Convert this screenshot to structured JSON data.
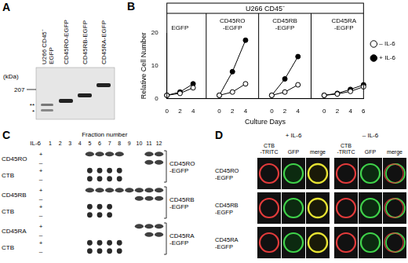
{
  "chart_data": {
    "panel_label": "B",
    "type": "line",
    "title": "U266 CD45⁻",
    "x_label": "Culture Days",
    "y_label": "Relative Cell Number",
    "categories": [
      "0",
      "2",
      "4",
      null,
      "0",
      "2",
      "4",
      null,
      "0",
      "2",
      "4",
      null,
      "0",
      "2",
      "4",
      "6"
    ],
    "groups": [
      [
        "EGFP"
      ],
      [
        "CD45RO",
        "-EGFP"
      ],
      [
        "CD45RB",
        "-EGFP"
      ],
      [
        "CD45RA",
        "-EGFP"
      ]
    ],
    "series": [
      {
        "name": "– IL-6",
        "color": "#000000",
        "marker": "open_circle",
        "values": [
          1,
          1.6,
          3.3,
          null,
          1,
          2,
          4.5,
          null,
          1,
          2,
          4.2,
          null,
          1,
          1.4,
          2.2,
          3.6
        ]
      },
      {
        "name": "+ IL-6",
        "color": "#000000",
        "marker": "circle",
        "values": [
          1,
          2,
          4.5,
          null,
          1,
          8.2,
          17.8,
          null,
          1,
          6,
          12.8,
          null,
          1,
          1.6,
          2.8,
          4.2
        ]
      }
    ],
    "ylim": [
      0,
      20
    ],
    "yticks": [
      0,
      10,
      20
    ],
    "grid": false,
    "legend": "right"
  },
  "panels": {
    "A": {
      "label": "A",
      "lanes": [
        [
          "U266 CD45⁻",
          "EGFP"
        ],
        [
          "CD45RO-EGFP"
        ],
        [
          "CD45RB-EGFP"
        ],
        [
          "CD45RA-EGFP"
        ]
      ],
      "unit": "(kDa)",
      "kda_marker": 207,
      "band_marks": [
        "**",
        "*"
      ]
    },
    "C": {
      "label": "C",
      "il6_label": "IL-6",
      "x_label": "Fraction number",
      "fractions": [
        1,
        2,
        3,
        4,
        5,
        6,
        7,
        8,
        9,
        10,
        11,
        12
      ],
      "signs": [
        "+",
        "–"
      ],
      "blocks": [
        {
          "construct": [
            "CD45RO",
            "-EGFP"
          ],
          "pairs": [
            {
              "probe": "CD45RO",
              "plus": [
                5,
                6,
                7,
                8,
                11,
                12
              ],
              "minus": [
                11,
                12
              ]
            },
            {
              "probe": "CTB",
              "plus": [
                5,
                6,
                7,
                8
              ],
              "minus": [
                5,
                6,
                7,
                8
              ]
            }
          ]
        },
        {
          "construct": [
            "CD45RB",
            "-EGFP"
          ],
          "pairs": [
            {
              "probe": "CD45RB",
              "plus": [
                5,
                6,
                7,
                8,
                9,
                10,
                11,
                12
              ],
              "minus": [
                10,
                11,
                12
              ]
            },
            {
              "probe": "CTB",
              "plus": [
                5,
                6,
                7
              ],
              "minus": [
                5,
                6,
                7
              ]
            }
          ]
        },
        {
          "construct": [
            "CD45RA",
            "-EGFP"
          ],
          "pairs": [
            {
              "probe": "CD45RA",
              "plus": [
                10,
                11,
                12
              ],
              "minus": [
                11,
                12
              ]
            },
            {
              "probe": "CTB",
              "plus": [
                5,
                6,
                7,
                8
              ],
              "minus": [
                5,
                6,
                7,
                8
              ]
            }
          ]
        }
      ]
    },
    "D": {
      "label": "D",
      "conditions": [
        "+ IL-6",
        "– IL-6"
      ],
      "channels": [
        [
          "CTB",
          "-TRITC"
        ],
        [
          "GFP"
        ],
        [
          "merge"
        ]
      ],
      "rows": [
        [
          "CD45RO",
          "-EGFP"
        ],
        [
          "CD45RB",
          "-EGFP"
        ],
        [
          "CD45RA",
          "-EGFP"
        ]
      ]
    }
  }
}
